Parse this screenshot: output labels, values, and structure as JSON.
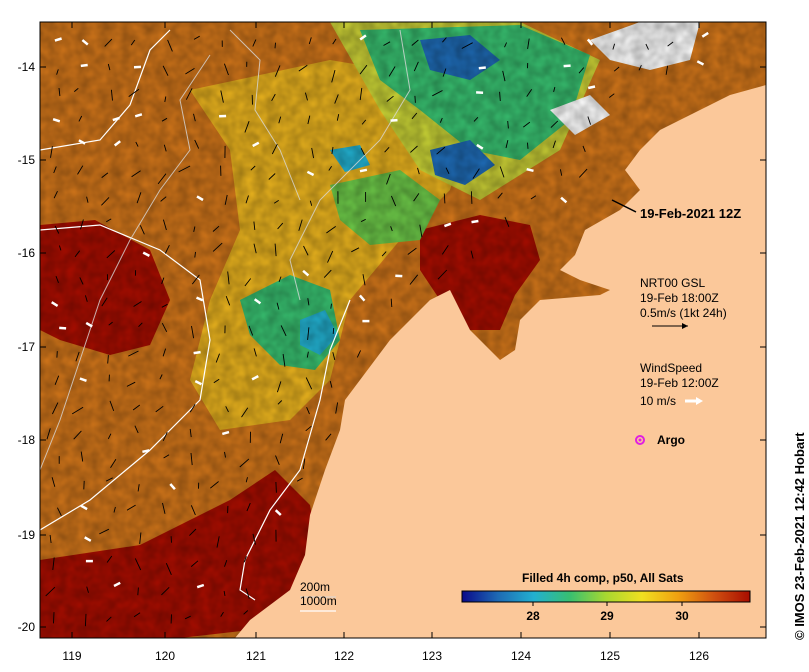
{
  "map": {
    "lon_ticks": [
      "119",
      "120",
      "121",
      "122",
      "123",
      "124",
      "125",
      "126"
    ],
    "lat_ticks": [
      "-14",
      "-15",
      "-16",
      "-17",
      "-18",
      "-19",
      "-20"
    ],
    "colors": {
      "land": "#fbc89a",
      "sst_hot": "#a80d00",
      "sst_warm": "#d2761a",
      "sst_mid": "#f0c020",
      "sst_cool": "#38c070",
      "sst_cold": "#1e6ab4",
      "cloud": "#ffffff"
    }
  },
  "annotations": {
    "timestamp": "19-Feb-2021 12Z",
    "current_label": "NRT00 GSL",
    "current_date": "19-Feb 18:00Z",
    "current_scale": "0.5m/s (1kt 24h)",
    "wind_label": "WindSpeed",
    "wind_date": "19-Feb 12:00Z",
    "wind_scale": "10 m/s",
    "argo_label": "Argo",
    "depth_200": "200m",
    "depth_1000": "1000m"
  },
  "colorbar": {
    "title": "Filled 4h comp, p50, All Sats",
    "ticks": [
      "28",
      "29",
      "30"
    ],
    "colors": [
      "#0a0a8a",
      "#1e6ab4",
      "#22b0d0",
      "#38c070",
      "#a8d830",
      "#f0e020",
      "#f0a010",
      "#d05010",
      "#a80d00"
    ]
  },
  "credit": "© IMOS 23-Feb-2021 12:42 Hobart"
}
